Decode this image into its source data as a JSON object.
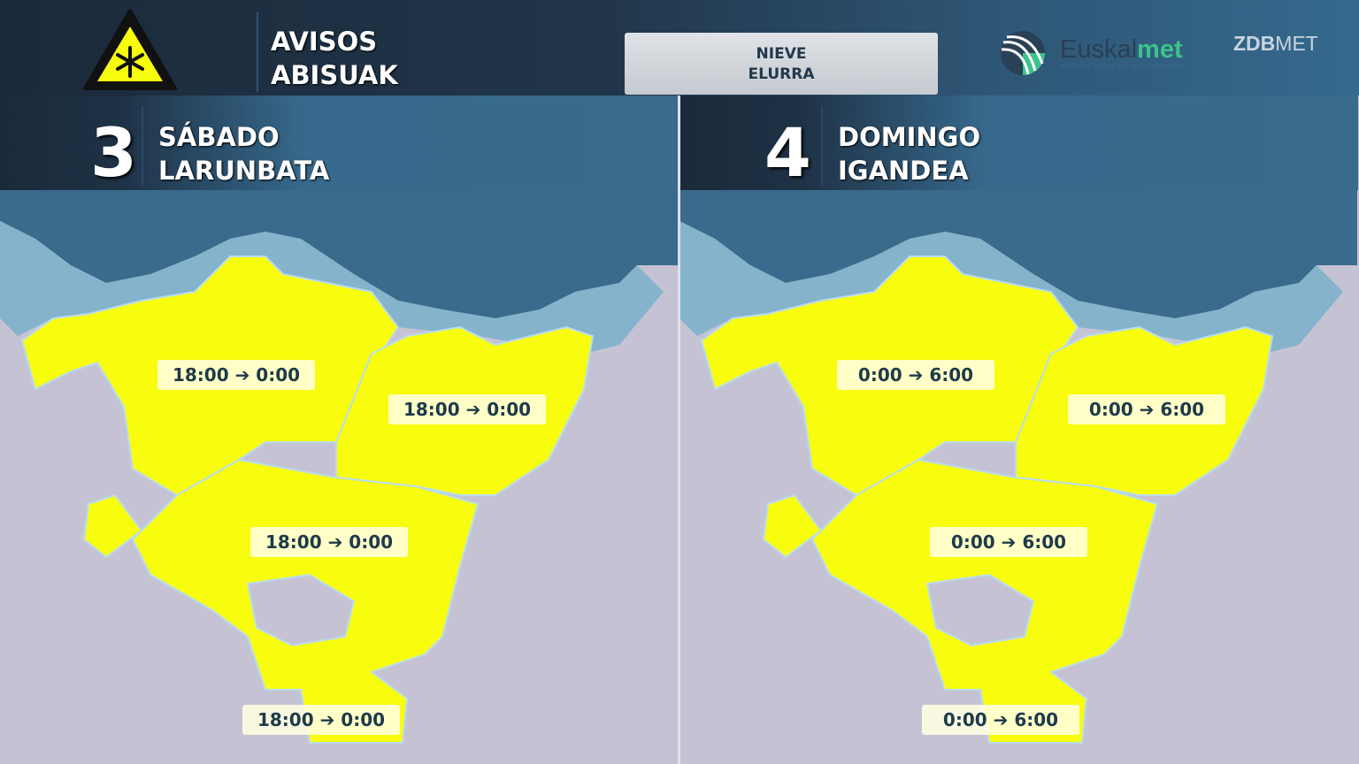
{
  "header": {
    "title_line1": "AVISOS",
    "title_line2": "ABISUAK",
    "icon": "snow-warning-triangle-icon",
    "warning_type_line1": "NIEVE",
    "warning_type_line2": "ELURRA"
  },
  "logos": {
    "euskalmet_a": "Euskal",
    "euskalmet_b": "met",
    "euskalmet_tagline": "AGENCIA VASCA DE METEOROLOGIA",
    "zdb_a": "ZDB",
    "zdb_b": "MET"
  },
  "colors": {
    "warning_yellow": "#f8fd0e",
    "sea": "#3a6a8c",
    "land": "#c5c3d3",
    "coast": "#85b3cc"
  },
  "panels": [
    {
      "day_number": "3",
      "day_es": "SÁBADO",
      "day_eu": "LARUNBATA",
      "labels": [
        "18:00 ➔ 0:00",
        "18:00 ➔ 0:00",
        "18:00 ➔ 0:00",
        "18:00 ➔ 0:00"
      ]
    },
    {
      "day_number": "4",
      "day_es": "DOMINGO",
      "day_eu": "IGANDEA",
      "labels": [
        "0:00 ➔ 6:00",
        "0:00 ➔ 6:00",
        "0:00 ➔ 6:00",
        "0:00 ➔ 6:00"
      ]
    }
  ]
}
